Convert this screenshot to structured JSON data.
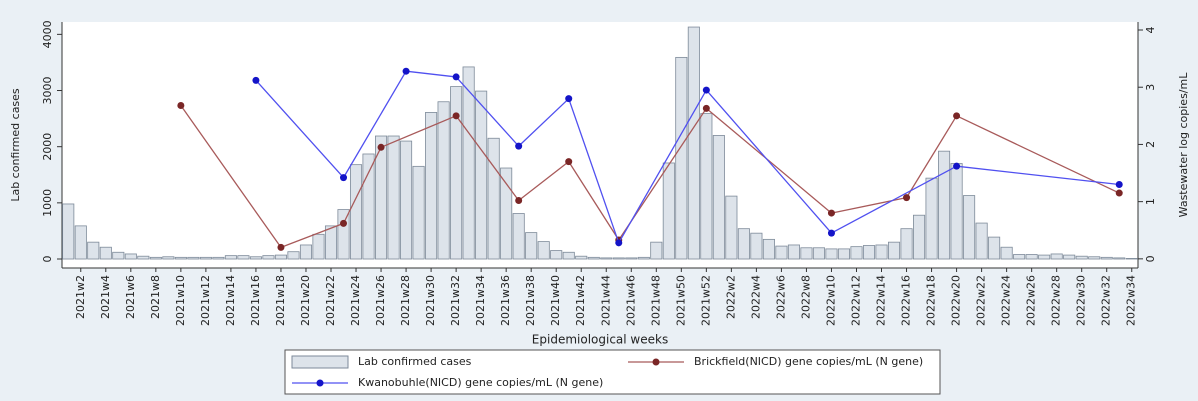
{
  "chart_data": {
    "type": "bar-line",
    "x_label": "Epidemiological weeks",
    "y_label": "Lab confirmed cases",
    "y2_label": "Wastewater log copies/mL",
    "categories": [
      null,
      "2021w2",
      null,
      "2021w4",
      null,
      "2021w6",
      null,
      "2021w8",
      null,
      "2021w10",
      null,
      "2021w12",
      null,
      "2021w14",
      null,
      "2021w16",
      null,
      "2021w18",
      null,
      "2021w20",
      null,
      "2021w22",
      null,
      "2021w24",
      null,
      "2021w26",
      null,
      "2021w28",
      null,
      "2021w30",
      null,
      "2021w32",
      null,
      "2021w34",
      null,
      "2021w36",
      null,
      "2021w38",
      null,
      "2021w40",
      null,
      "2021w42",
      null,
      "2021w44",
      null,
      "2021w46",
      null,
      "2021w48",
      null,
      "2021w50",
      null,
      "2021w52",
      null,
      "2022w2",
      null,
      "2022w4",
      null,
      "2022w6",
      null,
      "2022w8",
      null,
      "2022w10",
      null,
      "2022w12",
      null,
      "2022w14",
      null,
      "2022w16",
      null,
      "2022w18",
      null,
      "2022w20",
      null,
      "2022w22",
      null,
      "2022w24",
      null,
      "2022w26",
      null,
      "2022w28",
      null,
      "2022w30",
      null,
      "2022w32",
      null,
      "2022w34"
    ],
    "series": [
      {
        "name": "Lab confirmed cases",
        "type": "bar",
        "color": "#dde3ea",
        "values": [
          980,
          590,
          300,
          210,
          120,
          90,
          50,
          30,
          40,
          30,
          30,
          30,
          30,
          60,
          60,
          40,
          60,
          70,
          130,
          250,
          440,
          590,
          880,
          1680,
          1870,
          2190,
          2190,
          2100,
          1650,
          2610,
          2800,
          3070,
          3420,
          2990,
          2150,
          1620,
          810,
          470,
          310,
          150,
          120,
          50,
          30,
          20,
          20,
          20,
          30,
          300,
          1710,
          3590,
          4130,
          2590,
          2200,
          1120,
          540,
          460,
          350,
          230,
          250,
          200,
          200,
          180,
          180,
          220,
          240,
          250,
          300,
          540,
          780,
          1440,
          1920,
          1700,
          1130,
          640,
          390,
          210,
          80,
          80,
          70,
          90,
          70,
          50,
          40,
          30,
          20,
          10
        ]
      },
      {
        "name": "Brickfield(NICD) gene copies/mL (N gene)",
        "type": "line",
        "axis": "y2",
        "color": "#a85a5a",
        "marker_color": "#7a2626",
        "values": [
          null,
          null,
          null,
          null,
          null,
          null,
          null,
          null,
          null,
          2.68,
          null,
          null,
          null,
          null,
          null,
          null,
          null,
          0.2,
          null,
          null,
          null,
          null,
          0.62,
          null,
          null,
          1.95,
          null,
          null,
          null,
          null,
          null,
          2.5,
          null,
          null,
          null,
          null,
          1.02,
          null,
          null,
          null,
          1.7,
          null,
          null,
          null,
          0.33,
          null,
          null,
          null,
          null,
          null,
          null,
          2.63,
          null,
          null,
          null,
          null,
          null,
          null,
          null,
          null,
          null,
          0.8,
          null,
          null,
          null,
          null,
          null,
          1.07,
          null,
          null,
          null,
          2.5,
          null,
          null,
          null,
          null,
          null,
          null,
          null,
          null,
          null,
          null,
          null,
          null,
          1.15,
          null
        ]
      },
      {
        "name": "Kwanobuhle(NICD) gene copies/mL (N gene)",
        "type": "line",
        "axis": "y2",
        "color": "#5050f0",
        "marker_color": "#1414c8",
        "values": [
          null,
          null,
          null,
          null,
          null,
          null,
          null,
          null,
          null,
          null,
          null,
          null,
          null,
          null,
          null,
          3.12,
          null,
          null,
          null,
          null,
          null,
          null,
          1.42,
          null,
          null,
          null,
          null,
          3.28,
          null,
          null,
          null,
          3.18,
          null,
          null,
          null,
          null,
          1.97,
          null,
          null,
          null,
          2.8,
          null,
          null,
          null,
          0.28,
          null,
          null,
          null,
          null,
          null,
          null,
          2.95,
          null,
          null,
          null,
          null,
          null,
          null,
          null,
          null,
          null,
          0.45,
          null,
          null,
          null,
          null,
          null,
          null,
          null,
          null,
          null,
          1.62,
          null,
          null,
          null,
          null,
          null,
          null,
          null,
          null,
          null,
          null,
          null,
          null,
          1.3,
          null
        ]
      }
    ],
    "ylim": [
      -160,
      4220
    ],
    "yticks": [
      0,
      1000,
      2000,
      3000,
      4000
    ],
    "y2lim": [
      -0.16,
      4.14
    ],
    "y2ticks": [
      0,
      1,
      2,
      3,
      4
    ],
    "grid": false,
    "legend": "bottom"
  }
}
